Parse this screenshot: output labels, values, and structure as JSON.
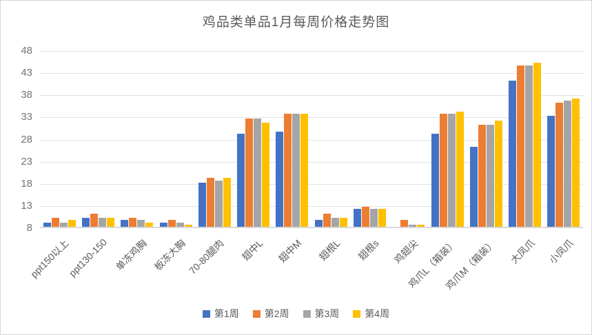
{
  "chart_data": {
    "type": "bar",
    "title": "鸡品类单品1月每周价格走势图",
    "categories": [
      "ppt150以上",
      "ppt130-150",
      "单冻鸡胸",
      "板冻大胸",
      "70-80腿肉",
      "翅中L",
      "翅中M",
      "翅根L",
      "翅根s",
      "鸡翅尖",
      "鸡爪L（箱装）",
      "鸡爪M（箱装）",
      "大凤爪",
      "小凤爪"
    ],
    "series": [
      {
        "name": "第1周",
        "color": "#4472C4",
        "values": [
          9,
          10,
          9.5,
          9,
          18,
          29,
          29.5,
          9.5,
          12,
          null,
          29,
          26,
          41,
          33
        ]
      },
      {
        "name": "第2周",
        "color": "#ED7D31",
        "values": [
          10,
          11,
          10,
          9.5,
          19,
          32.5,
          33.5,
          11,
          12.5,
          9.5,
          33.5,
          31,
          44.5,
          36
        ]
      },
      {
        "name": "第3周",
        "color": "#A5A5A5",
        "values": [
          9,
          10,
          9.5,
          9,
          18.5,
          32.5,
          33.5,
          10,
          12,
          8.5,
          33.5,
          31,
          44.5,
          36.5
        ]
      },
      {
        "name": "第4周",
        "color": "#FFC000",
        "values": [
          9.5,
          10,
          9,
          8.5,
          19,
          31.5,
          33.5,
          10,
          12,
          8.5,
          34,
          32,
          45,
          37
        ]
      }
    ],
    "y_axis": {
      "min": 8,
      "max": 48,
      "step": 5,
      "ticks": [
        8,
        13,
        18,
        23,
        28,
        33,
        38,
        43,
        48
      ]
    },
    "xlabel": "",
    "ylabel": "",
    "grid": true,
    "legend_position": "bottom",
    "x_label_rotation_deg": 45
  }
}
